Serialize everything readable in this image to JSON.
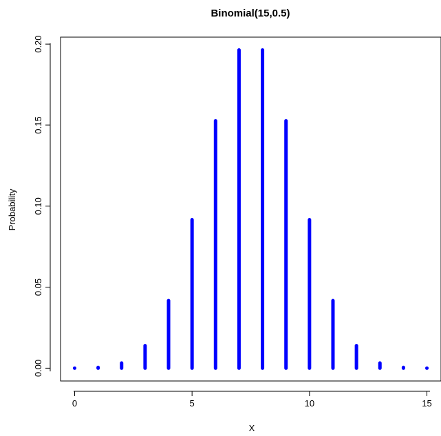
{
  "chart_data": {
    "type": "bar",
    "title": "Binomial(15,0.5)",
    "xlabel": "X",
    "ylabel": "Probability",
    "x": [
      0,
      1,
      2,
      3,
      4,
      5,
      6,
      7,
      8,
      9,
      10,
      11,
      12,
      13,
      14,
      15
    ],
    "values": [
      3e-05,
      0.00046,
      0.0032,
      0.0139,
      0.0417,
      0.0916,
      0.1527,
      0.1964,
      0.1964,
      0.1527,
      0.0916,
      0.0417,
      0.0139,
      0.0032,
      0.00046,
      3e-05
    ],
    "xlim": [
      -0.6,
      15.6
    ],
    "ylim": [
      -0.0079,
      0.2043
    ],
    "xticks": [
      0,
      5,
      10,
      15
    ],
    "xtick_labels": [
      "0",
      "5",
      "10",
      "15"
    ],
    "yticks": [
      0.0,
      0.05,
      0.1,
      0.15,
      0.2
    ],
    "ytick_labels": [
      "0.00",
      "0.05",
      "0.10",
      "0.15",
      "0.20"
    ],
    "bar_color": "#0000ff",
    "grid": false,
    "legend": "none"
  }
}
